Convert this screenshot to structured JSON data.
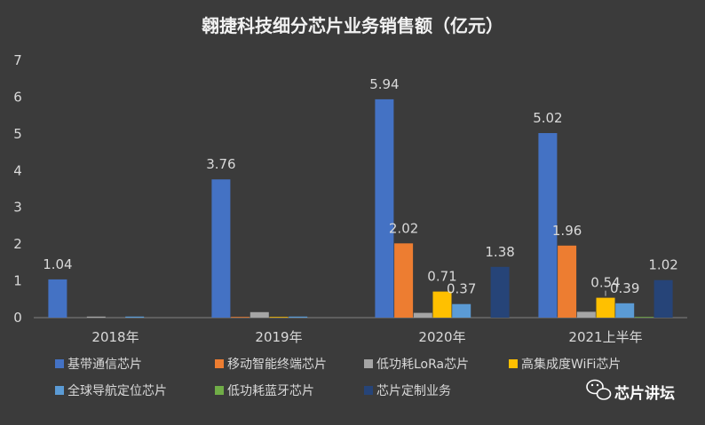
{
  "chart_data": {
    "type": "bar",
    "title": "翱捷科技细分芯片业务销售额（亿元）",
    "categories": [
      "2018年",
      "2019年",
      "2020年",
      "2021上半年"
    ],
    "ylim": [
      0,
      7
    ],
    "yticks": [
      0,
      1,
      2,
      3,
      4,
      5,
      6,
      7
    ],
    "grid": false,
    "legend_position": "bottom",
    "series": [
      {
        "name": "基带通信芯片",
        "color": "#4472c4",
        "values": [
          1.04,
          3.76,
          5.94,
          5.02
        ],
        "labels": [
          "1.04",
          "3.76",
          "5.94",
          "5.02"
        ]
      },
      {
        "name": "移动智能终端芯片",
        "color": "#ed7d31",
        "values": [
          0,
          0.02,
          2.02,
          1.96
        ],
        "labels": [
          null,
          null,
          "2.02",
          "1.96"
        ]
      },
      {
        "name": "低功耗LoRa芯片",
        "color": "#a5a5a5",
        "values": [
          0.03,
          0.15,
          0.13,
          0.16
        ],
        "labels": [
          null,
          null,
          null,
          null
        ]
      },
      {
        "name": "高集成度WiFi芯片",
        "color": "#ffc000",
        "values": [
          0,
          0.02,
          0.71,
          0.54
        ],
        "labels": [
          null,
          null,
          "0.71",
          "0.54"
        ]
      },
      {
        "name": "全球导航定位芯片",
        "color": "#5b9bd5",
        "values": [
          0.03,
          0.03,
          0.37,
          0.39
        ],
        "labels": [
          null,
          null,
          "0.37",
          "0.39"
        ]
      },
      {
        "name": "低功耗蓝牙芯片",
        "color": "#70ad47",
        "values": [
          0,
          0,
          0,
          0.02
        ],
        "labels": [
          null,
          null,
          null,
          null
        ]
      },
      {
        "name": "芯片定制业务",
        "color": "#264478",
        "values": [
          0,
          0,
          1.38,
          1.02
        ],
        "labels": [
          null,
          null,
          "1.38",
          "1.02"
        ]
      }
    ]
  },
  "watermark": {
    "icon": "wechat-icon",
    "text": "芯片讲坛"
  }
}
